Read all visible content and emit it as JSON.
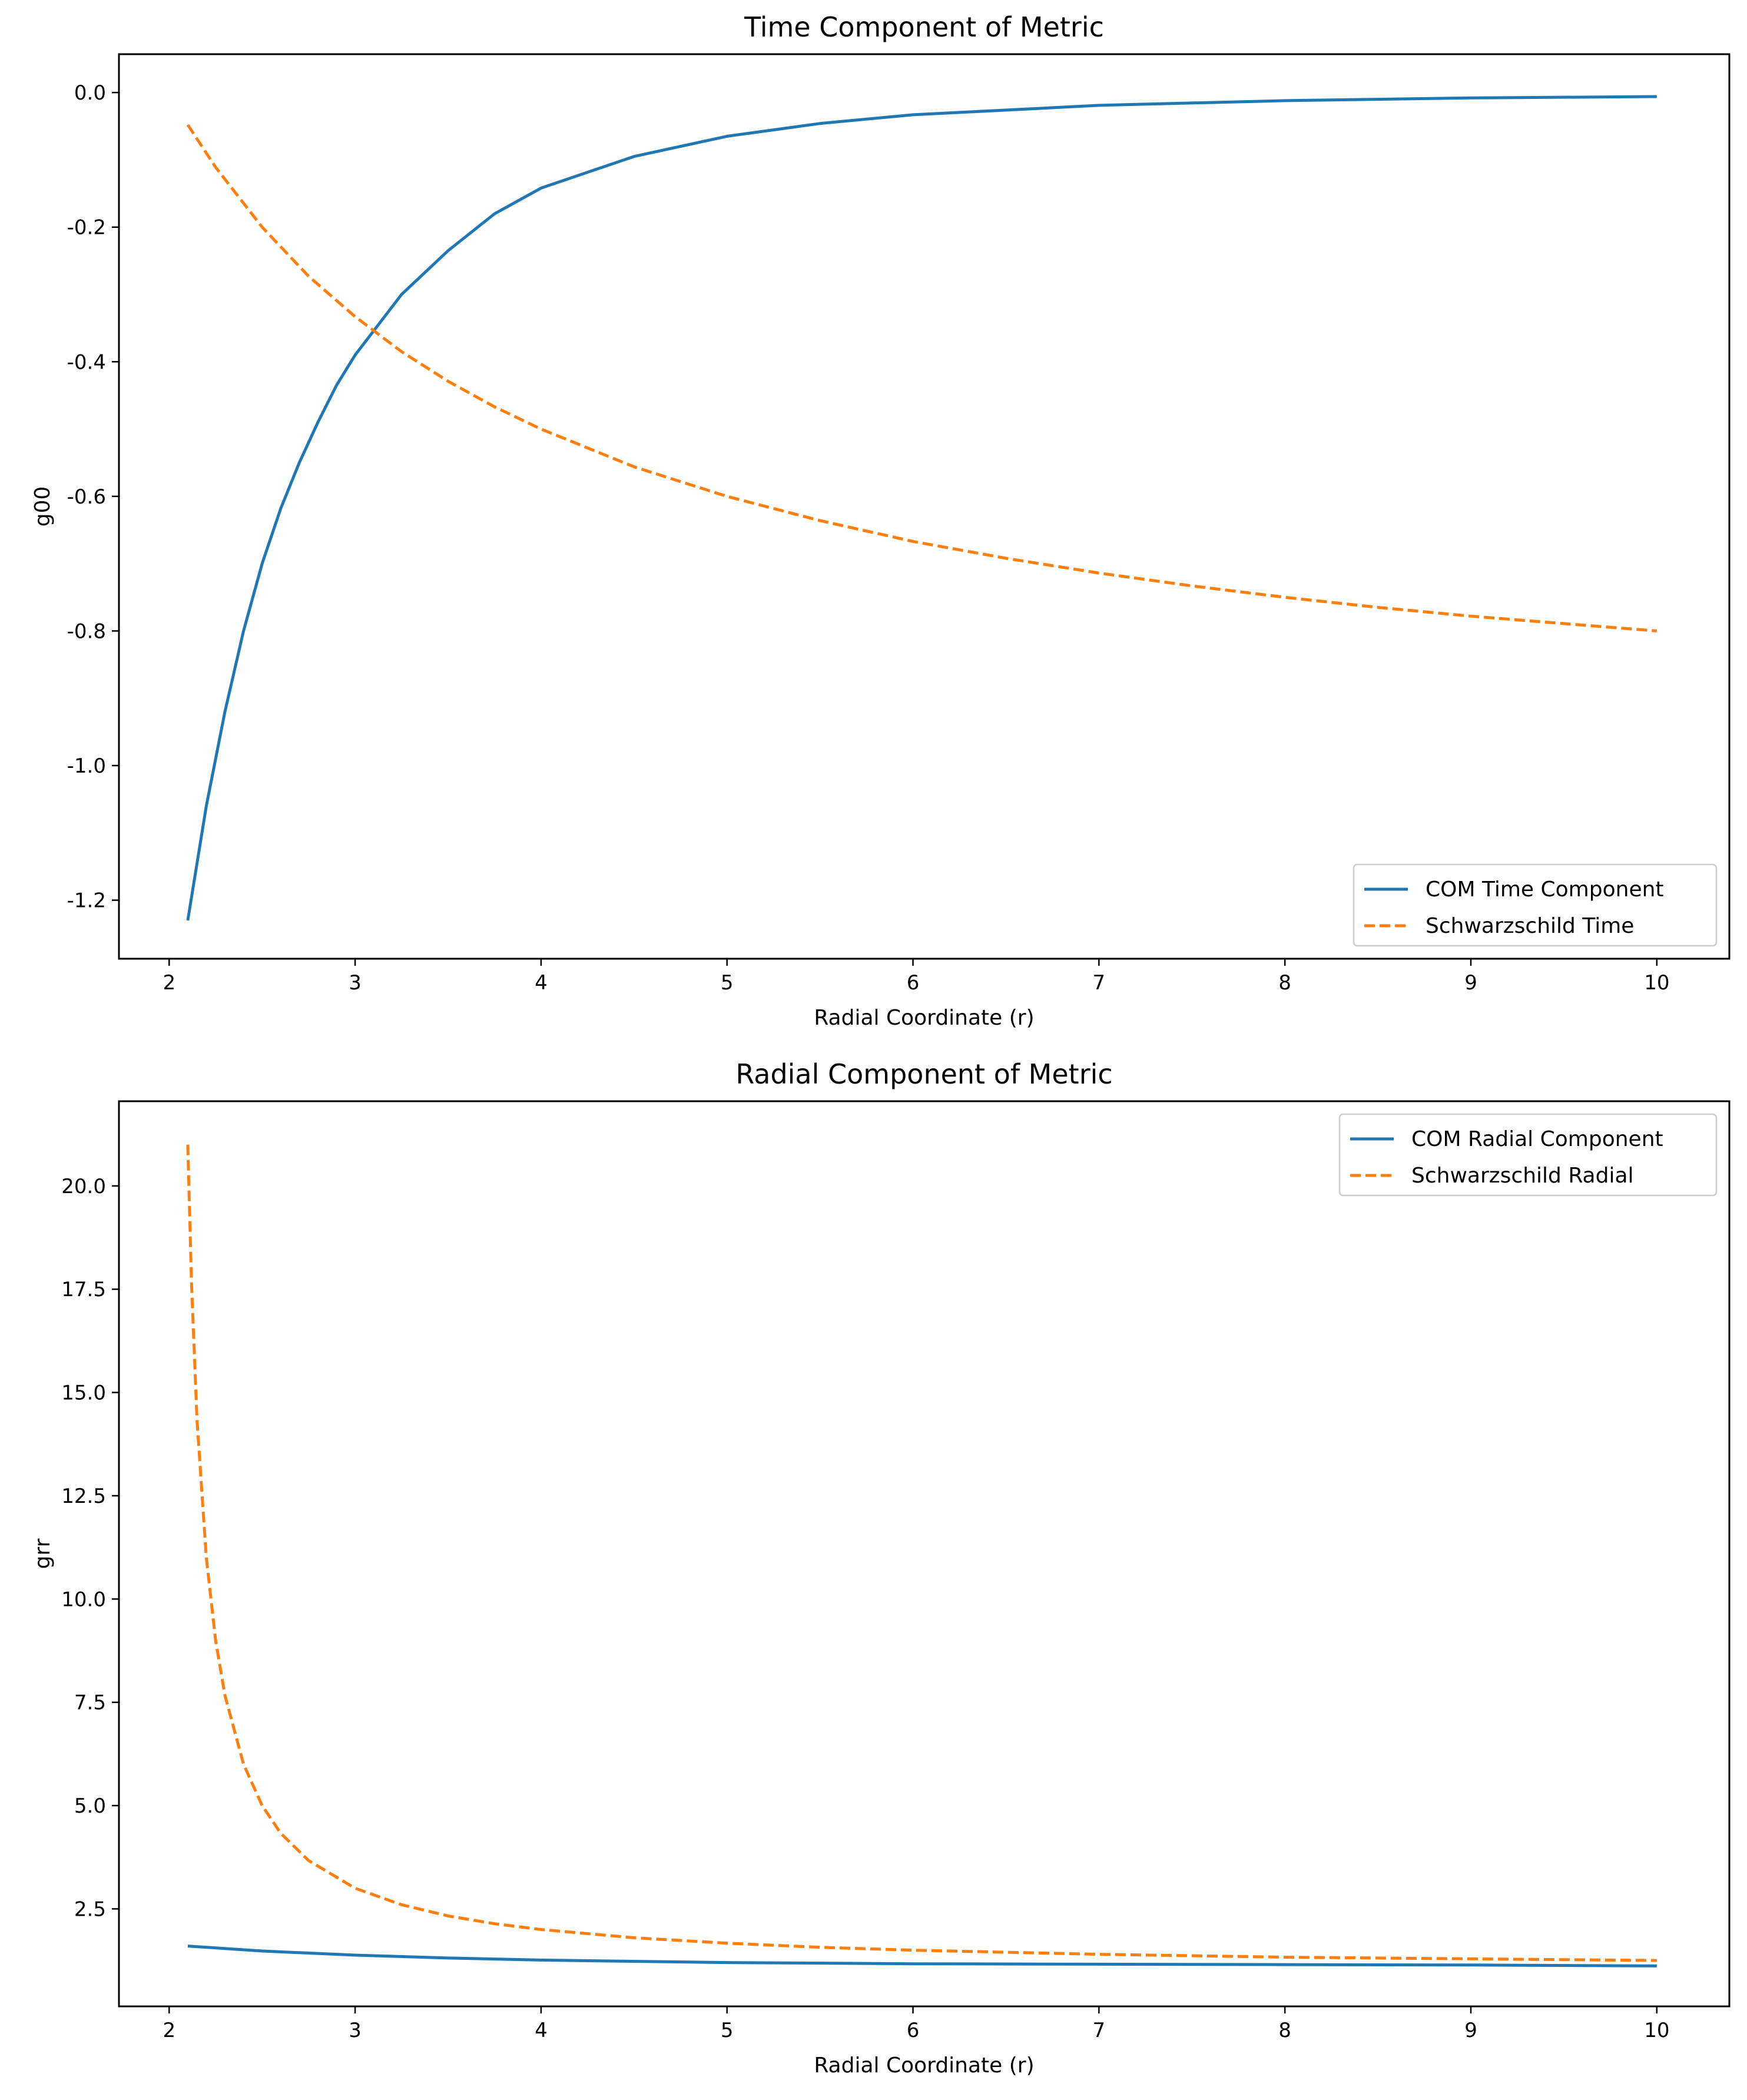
{
  "chart_data": [
    {
      "type": "line",
      "title": "Time Component of Metric",
      "xlabel": "Radial Coordinate (r)",
      "ylabel": "g00",
      "xlim": [
        1.73,
        10.39
      ],
      "ylim": [
        -1.287,
        0.057
      ],
      "xticks": [
        2,
        3,
        4,
        5,
        6,
        7,
        8,
        9,
        10
      ],
      "xtick_labels": [
        "2",
        "3",
        "4",
        "5",
        "6",
        "7",
        "8",
        "9",
        "10"
      ],
      "yticks": [
        0.0,
        -0.2,
        -0.4,
        -0.6,
        -0.8,
        -1.0,
        -1.2
      ],
      "ytick_labels": [
        "0.0",
        "-0.2",
        "-0.4",
        "-0.6",
        "-0.8",
        "-1.0",
        "-1.2"
      ],
      "legend_position": "lower-right",
      "grid": false,
      "series": [
        {
          "name": "COM Time Component",
          "color": "#1f77b4",
          "style": "solid",
          "x": [
            2.1,
            2.2,
            2.3,
            2.4,
            2.5,
            2.6,
            2.7,
            2.8,
            2.9,
            3.0,
            3.25,
            3.5,
            3.75,
            4.0,
            4.5,
            5.0,
            5.5,
            6.0,
            7.0,
            8.0,
            9.0,
            10.0
          ],
          "y": [
            -1.23,
            -1.06,
            -0.92,
            -0.8,
            -0.7,
            -0.618,
            -0.55,
            -0.49,
            -0.435,
            -0.39,
            -0.3,
            -0.235,
            -0.18,
            -0.142,
            -0.095,
            -0.065,
            -0.046,
            -0.033,
            -0.019,
            -0.012,
            -0.008,
            -0.006
          ]
        },
        {
          "name": "Schwarzschild Time",
          "color": "#ff7f0e",
          "style": "dashed",
          "x": [
            2.1,
            2.25,
            2.5,
            2.75,
            3.0,
            3.25,
            3.5,
            3.75,
            4.0,
            4.5,
            5.0,
            5.5,
            6.0,
            6.5,
            7.0,
            7.5,
            8.0,
            8.5,
            9.0,
            9.5,
            10.0
          ],
          "y": [
            -0.048,
            -0.111,
            -0.2,
            -0.273,
            -0.333,
            -0.385,
            -0.429,
            -0.467,
            -0.5,
            -0.556,
            -0.6,
            -0.636,
            -0.667,
            -0.692,
            -0.714,
            -0.733,
            -0.75,
            -0.765,
            -0.778,
            -0.789,
            -0.8
          ]
        }
      ]
    },
    {
      "type": "line",
      "title": "Radial Component of Metric",
      "xlabel": "Radial Coordinate (r)",
      "ylabel": "grr",
      "xlim": [
        1.73,
        10.39
      ],
      "ylim": [
        0.14,
        22.05
      ],
      "xticks": [
        2,
        3,
        4,
        5,
        6,
        7,
        8,
        9,
        10
      ],
      "xtick_labels": [
        "2",
        "3",
        "4",
        "5",
        "6",
        "7",
        "8",
        "9",
        "10"
      ],
      "yticks": [
        2.5,
        5.0,
        7.5,
        10.0,
        12.5,
        15.0,
        17.5,
        20.0
      ],
      "ytick_labels": [
        "2.5",
        "5.0",
        "7.5",
        "10.0",
        "12.5",
        "15.0",
        "17.5",
        "20.0"
      ],
      "legend_position": "upper-right",
      "grid": false,
      "series": [
        {
          "name": "COM Radial Component",
          "color": "#1f77b4",
          "style": "solid",
          "x": [
            2.1,
            2.5,
            3.0,
            3.5,
            4.0,
            5.0,
            6.0,
            7.0,
            8.0,
            9.0,
            10.0
          ],
          "y": [
            1.6,
            1.48,
            1.38,
            1.31,
            1.26,
            1.2,
            1.17,
            1.16,
            1.15,
            1.14,
            1.12
          ]
        },
        {
          "name": "Schwarzschild Radial",
          "color": "#ff7f0e",
          "style": "dashed",
          "x": [
            2.1,
            2.12,
            2.15,
            2.2,
            2.25,
            2.3,
            2.4,
            2.5,
            2.6,
            2.75,
            3.0,
            3.25,
            3.5,
            3.75,
            4.0,
            4.5,
            5.0,
            5.5,
            6.0,
            7.0,
            8.0,
            9.0,
            10.0
          ],
          "y": [
            21.0,
            17.67,
            14.33,
            11.0,
            9.0,
            7.67,
            6.0,
            5.0,
            4.33,
            3.67,
            3.0,
            2.6,
            2.33,
            2.14,
            2.0,
            1.8,
            1.67,
            1.57,
            1.5,
            1.4,
            1.33,
            1.29,
            1.25
          ]
        }
      ]
    }
  ]
}
